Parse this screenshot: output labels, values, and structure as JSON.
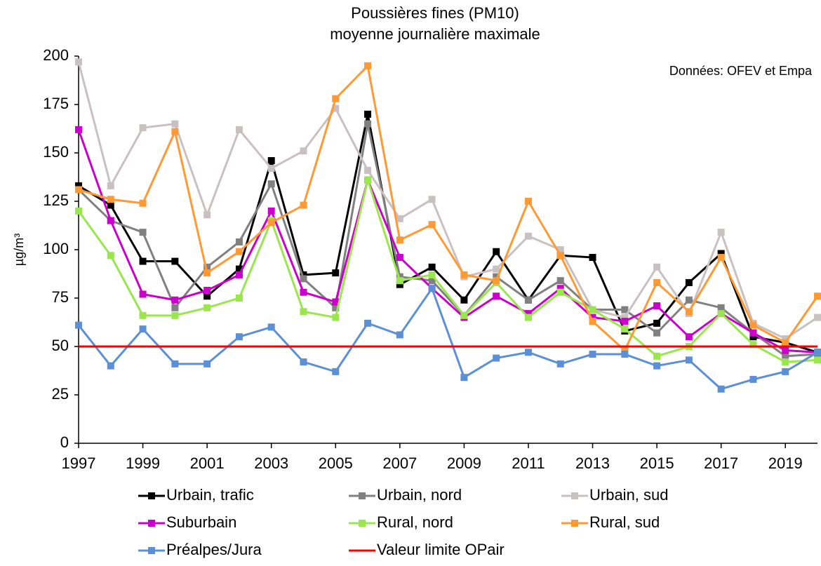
{
  "chart_data": {
    "type": "line",
    "title": "Poussières fines (PM10)",
    "subtitle": "moyenne journalière maximale",
    "y_label": "µg/m³",
    "annotation": "Données: OFEV et Empa",
    "x": [
      1997,
      1998,
      1999,
      2000,
      2001,
      2002,
      2003,
      2004,
      2005,
      2006,
      2007,
      2008,
      2009,
      2010,
      2011,
      2012,
      2013,
      2014,
      2015,
      2016,
      2017,
      2018,
      2019,
      2020
    ],
    "xlim": [
      1997,
      2020
    ],
    "xticks": [
      1997,
      1999,
      2001,
      2003,
      2005,
      2007,
      2009,
      2011,
      2013,
      2015,
      2017,
      2019
    ],
    "ylim": [
      0,
      200
    ],
    "yticks": [
      0,
      25,
      50,
      75,
      100,
      125,
      150,
      175,
      200
    ],
    "series": [
      {
        "name": "Urbain, trafic",
        "color": "#000000",
        "markers": true,
        "values": [
          133,
          123,
          94,
          94,
          76,
          90,
          146,
          87,
          88,
          170,
          82,
          91,
          74,
          99,
          74,
          97,
          96,
          58,
          62,
          83,
          98,
          55,
          52,
          47
        ]
      },
      {
        "name": "Urbain, nord",
        "color": "#808080",
        "markers": true,
        "values": [
          131,
          115,
          109,
          70,
          91,
          104,
          134,
          85,
          70,
          165,
          86,
          84,
          66,
          86,
          74,
          84,
          69,
          69,
          57,
          74,
          70,
          57,
          45,
          46
        ]
      },
      {
        "name": "Urbain, sud",
        "color": "#c9c1c1",
        "markers": true,
        "values": [
          197,
          133,
          163,
          165,
          118,
          162,
          142,
          151,
          173,
          141,
          116,
          126,
          86,
          90,
          107,
          100,
          69,
          65,
          91,
          67,
          109,
          62,
          54,
          65
        ]
      },
      {
        "name": "Suburbain",
        "color": "#cc00cc",
        "markers": true,
        "values": [
          162,
          115,
          77,
          74,
          79,
          87,
          120,
          78,
          73,
          136,
          96,
          80,
          65,
          76,
          67,
          80,
          65,
          63,
          71,
          55,
          67,
          57,
          48,
          47
        ]
      },
      {
        "name": "Rural, nord",
        "color": "#99e64d",
        "markers": true,
        "values": [
          120,
          97,
          66,
          66,
          70,
          75,
          115,
          68,
          65,
          136,
          84,
          87,
          66,
          83,
          65,
          78,
          69,
          59,
          45,
          50,
          67,
          51,
          42,
          43
        ]
      },
      {
        "name": "Rural, sud",
        "color": "#ff9933",
        "markers": true,
        "values": [
          131,
          126,
          124,
          161,
          88,
          99,
          114,
          123,
          178,
          195,
          105,
          113,
          87,
          84,
          125,
          97,
          63,
          48,
          83,
          68,
          96,
          61,
          52,
          76
        ]
      },
      {
        "name": "Préalpes/Jura",
        "color": "#5b8fd6",
        "markers": true,
        "values": [
          61,
          40,
          59,
          41,
          41,
          55,
          60,
          42,
          37,
          62,
          56,
          80,
          34,
          44,
          47,
          41,
          46,
          46,
          40,
          43,
          28,
          33,
          37,
          47
        ]
      },
      {
        "name": "Valeur limite OPair",
        "color": "#ff0000",
        "markers": false,
        "values": [
          50,
          50,
          50,
          50,
          50,
          50,
          50,
          50,
          50,
          50,
          50,
          50,
          50,
          50,
          50,
          50,
          50,
          50,
          50,
          50,
          50,
          50,
          50,
          50
        ]
      }
    ]
  }
}
